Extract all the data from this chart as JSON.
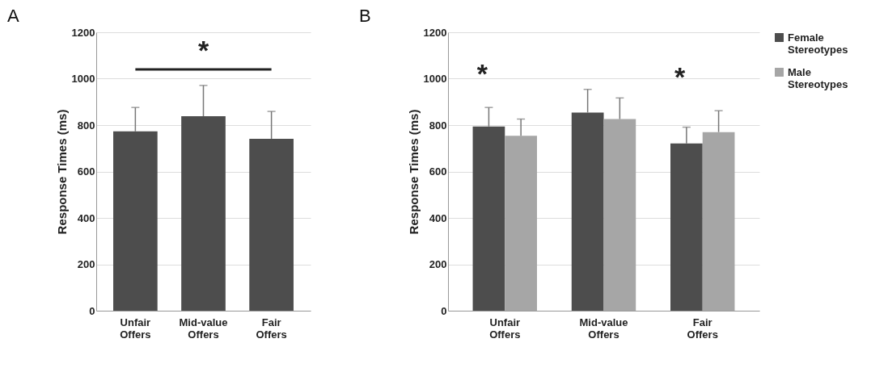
{
  "chart_data": [
    {
      "type": "bar",
      "title": "A",
      "ylabel": "Response Times (ms)",
      "categories": [
        "Unfair Offers",
        "Mid-value Offers",
        "Fair Offers"
      ],
      "series": [
        {
          "color": "#4d4d4d",
          "values": [
            773,
            838,
            741
          ],
          "errors": [
            [
              773,
              876
            ],
            [
              838,
              971
            ],
            [
              741,
              859
            ]
          ]
        }
      ],
      "ylim": [
        0,
        1200
      ],
      "yticks": [
        0,
        200,
        400,
        600,
        800,
        1000,
        1200
      ],
      "grid": "y",
      "annotations": [
        "*"
      ]
    },
    {
      "type": "bar",
      "title": "B",
      "ylabel": "Response Times (ms)",
      "categories": [
        "Unfair Offers",
        "Mid-value Offers",
        "Fair Offers"
      ],
      "series": [
        {
          "name": "Female Stereotypes",
          "color": "#4d4d4d",
          "values": [
            794,
            854,
            721
          ],
          "errors": [
            [
              794,
              876
            ],
            [
              854,
              954
            ],
            [
              721,
              791
            ]
          ]
        },
        {
          "name": "Male Stereotypes",
          "color": "#a6a6a6",
          "values": [
            754,
            826,
            770
          ],
          "errors": [
            [
              754,
              826
            ],
            [
              826,
              917
            ],
            [
              770,
              862
            ]
          ]
        }
      ],
      "ylim": [
        0,
        1200
      ],
      "yticks": [
        0,
        200,
        400,
        600,
        800,
        1000,
        1200
      ],
      "grid": "y",
      "legend": "right",
      "annotations": [
        "*",
        "*"
      ]
    }
  ]
}
